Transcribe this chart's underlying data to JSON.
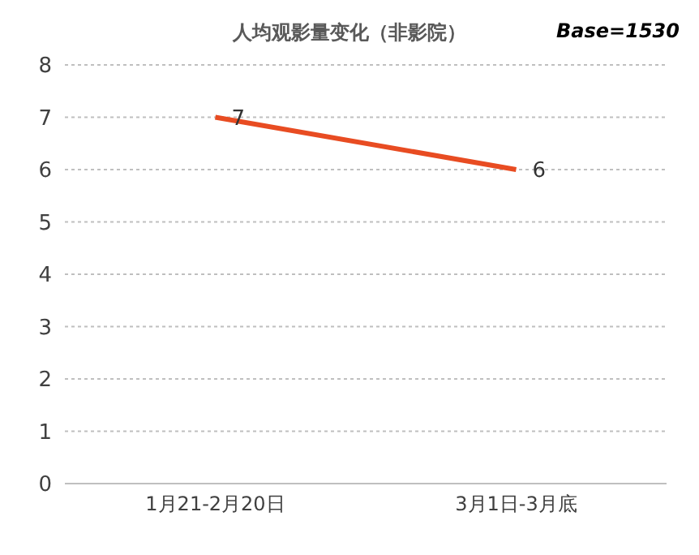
{
  "chart_data": {
    "type": "line",
    "title": "人均观影量变化（非影院）",
    "annotations": [
      "Base=1530"
    ],
    "categories": [
      "1月21-2月20日",
      "3月1日-3月底"
    ],
    "series": [
      {
        "color": "#e84c22",
        "values": [
          7,
          6
        ]
      }
    ],
    "ylim": [
      0,
      8
    ],
    "yticks": [
      0,
      1,
      2,
      3,
      4,
      5,
      6,
      7,
      8
    ],
    "grid": "y",
    "legend": false,
    "marker": "none",
    "line_style": "solid",
    "data_labels": true
  }
}
